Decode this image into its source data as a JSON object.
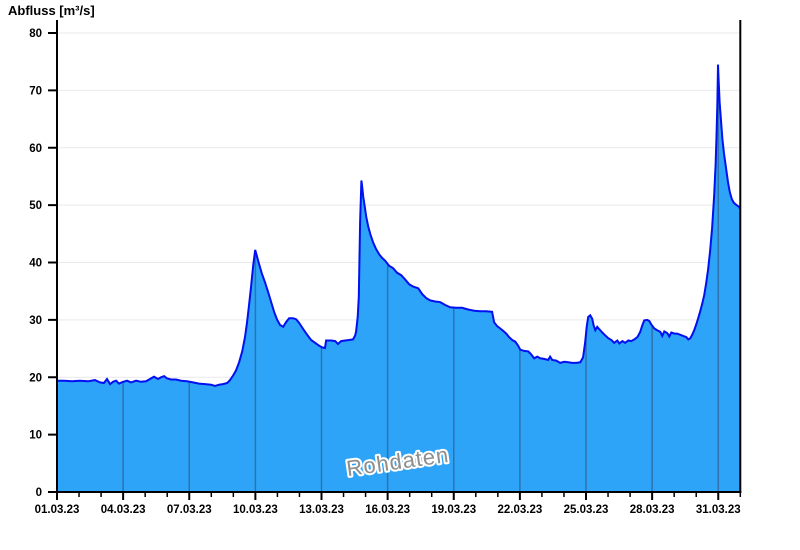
{
  "chart_data": {
    "type": "area",
    "title": "Abfluss [m³/s]",
    "watermark": "Rohdaten",
    "xlabel": "",
    "ylabel": "Abfluss [m³/s]",
    "ylim": [
      0,
      80
    ],
    "y_ticks": [
      0,
      10,
      20,
      30,
      40,
      50,
      60,
      70,
      80
    ],
    "x_range_days": [
      0,
      31
    ],
    "x_major_tick_days": [
      0,
      3,
      6,
      9,
      12,
      15,
      18,
      21,
      24,
      27,
      30
    ],
    "x_tick_labels": [
      "01.03.23",
      "04.03.23",
      "07.03.23",
      "10.03.23",
      "13.03.23",
      "16.03.23",
      "19.03.23",
      "22.03.23",
      "25.03.23",
      "28.03.23",
      "31.03.23"
    ],
    "grid": {
      "horizontal": true,
      "vertical_on_fill_every_days": 3
    },
    "legend": "none",
    "colors": {
      "fill": "#2da4f7",
      "line": "#0010f0",
      "vgrid_on_fill": "#2f72ae",
      "hgrid": "#e9e9ec",
      "axis": "#000000",
      "watermark": "#8e8e8e",
      "watermark_halo": "#ffffff"
    },
    "series": [
      {
        "name": "Rohdaten",
        "unit": "m³/s",
        "points": [
          [
            0.0,
            19.4
          ],
          [
            0.32,
            19.4
          ],
          [
            0.68,
            19.3
          ],
          [
            1.04,
            19.4
          ],
          [
            1.41,
            19.3
          ],
          [
            1.72,
            19.5
          ],
          [
            1.95,
            19.1
          ],
          [
            2.13,
            19.0
          ],
          [
            2.27,
            19.7
          ],
          [
            2.41,
            18.8
          ],
          [
            2.54,
            19.2
          ],
          [
            2.68,
            19.4
          ],
          [
            2.81,
            18.9
          ],
          [
            3.0,
            19.2
          ],
          [
            3.18,
            19.4
          ],
          [
            3.36,
            19.1
          ],
          [
            3.59,
            19.4
          ],
          [
            3.81,
            19.2
          ],
          [
            4.04,
            19.3
          ],
          [
            4.22,
            19.7
          ],
          [
            4.4,
            20.1
          ],
          [
            4.58,
            19.7
          ],
          [
            4.72,
            20.0
          ],
          [
            4.86,
            20.2
          ],
          [
            4.99,
            19.8
          ],
          [
            5.17,
            19.6
          ],
          [
            5.4,
            19.6
          ],
          [
            5.63,
            19.4
          ],
          [
            5.9,
            19.3
          ],
          [
            6.17,
            19.1
          ],
          [
            6.44,
            18.9
          ],
          [
            6.72,
            18.8
          ],
          [
            6.99,
            18.7
          ],
          [
            7.17,
            18.5
          ],
          [
            7.35,
            18.7
          ],
          [
            7.53,
            18.8
          ],
          [
            7.72,
            19.0
          ],
          [
            7.85,
            19.5
          ],
          [
            7.99,
            20.3
          ],
          [
            8.12,
            21.2
          ],
          [
            8.26,
            22.6
          ],
          [
            8.4,
            24.5
          ],
          [
            8.53,
            27.0
          ],
          [
            8.62,
            29.5
          ],
          [
            8.71,
            32.5
          ],
          [
            8.81,
            36.0
          ],
          [
            8.9,
            39.5
          ],
          [
            8.99,
            42.2
          ],
          [
            9.08,
            41.0
          ],
          [
            9.17,
            39.7
          ],
          [
            9.3,
            38.0
          ],
          [
            9.44,
            36.5
          ],
          [
            9.58,
            34.8
          ],
          [
            9.71,
            33.2
          ],
          [
            9.85,
            31.4
          ],
          [
            9.99,
            30.0
          ],
          [
            10.12,
            29.1
          ],
          [
            10.26,
            28.8
          ],
          [
            10.39,
            29.6
          ],
          [
            10.53,
            30.3
          ],
          [
            10.71,
            30.3
          ],
          [
            10.85,
            30.1
          ],
          [
            10.98,
            29.5
          ],
          [
            11.17,
            28.4
          ],
          [
            11.35,
            27.4
          ],
          [
            11.53,
            26.5
          ],
          [
            11.71,
            26.0
          ],
          [
            11.89,
            25.5
          ],
          [
            12.03,
            25.2
          ],
          [
            12.16,
            25.1
          ],
          [
            12.21,
            26.4
          ],
          [
            12.44,
            26.4
          ],
          [
            12.62,
            26.3
          ],
          [
            12.75,
            25.8
          ],
          [
            12.89,
            26.3
          ],
          [
            13.07,
            26.4
          ],
          [
            13.25,
            26.5
          ],
          [
            13.43,
            26.6
          ],
          [
            13.53,
            27.3
          ],
          [
            13.57,
            28.0
          ],
          [
            13.64,
            30.5
          ],
          [
            13.69,
            34.0
          ],
          [
            13.72,
            40.0
          ],
          [
            13.75,
            47.0
          ],
          [
            13.79,
            52.0
          ],
          [
            13.81,
            54.3
          ],
          [
            13.85,
            53.0
          ],
          [
            13.89,
            51.5
          ],
          [
            13.96,
            49.8
          ],
          [
            14.03,
            48.0
          ],
          [
            14.12,
            46.3
          ],
          [
            14.21,
            45.0
          ],
          [
            14.34,
            43.5
          ],
          [
            14.48,
            42.3
          ],
          [
            14.62,
            41.4
          ],
          [
            14.75,
            40.8
          ],
          [
            14.89,
            40.3
          ],
          [
            15.07,
            39.4
          ],
          [
            15.25,
            39.0
          ],
          [
            15.43,
            38.2
          ],
          [
            15.61,
            37.8
          ],
          [
            15.8,
            37.0
          ],
          [
            15.98,
            36.2
          ],
          [
            16.16,
            35.8
          ],
          [
            16.39,
            35.5
          ],
          [
            16.57,
            34.5
          ],
          [
            16.75,
            33.8
          ],
          [
            16.93,
            33.4
          ],
          [
            17.16,
            33.2
          ],
          [
            17.38,
            33.1
          ],
          [
            17.61,
            32.6
          ],
          [
            17.84,
            32.2
          ],
          [
            18.11,
            32.1
          ],
          [
            18.38,
            32.1
          ],
          [
            18.65,
            31.8
          ],
          [
            18.93,
            31.6
          ],
          [
            19.2,
            31.5
          ],
          [
            19.47,
            31.5
          ],
          [
            19.74,
            31.4
          ],
          [
            19.83,
            29.6
          ],
          [
            19.97,
            28.9
          ],
          [
            20.11,
            28.5
          ],
          [
            20.24,
            28.1
          ],
          [
            20.38,
            27.6
          ],
          [
            20.51,
            27.0
          ],
          [
            20.65,
            26.5
          ],
          [
            20.79,
            26.2
          ],
          [
            20.92,
            25.5
          ],
          [
            21.02,
            24.8
          ],
          [
            21.2,
            24.6
          ],
          [
            21.38,
            24.5
          ],
          [
            21.51,
            24.0
          ],
          [
            21.65,
            23.3
          ],
          [
            21.79,
            23.6
          ],
          [
            21.92,
            23.3
          ],
          [
            22.1,
            23.2
          ],
          [
            22.28,
            23.0
          ],
          [
            22.37,
            23.6
          ],
          [
            22.47,
            23.0
          ],
          [
            22.65,
            22.9
          ],
          [
            22.83,
            22.5
          ],
          [
            23.01,
            22.7
          ],
          [
            23.19,
            22.6
          ],
          [
            23.37,
            22.5
          ],
          [
            23.56,
            22.5
          ],
          [
            23.74,
            22.6
          ],
          [
            23.87,
            23.5
          ],
          [
            23.96,
            26.0
          ],
          [
            24.03,
            28.8
          ],
          [
            24.1,
            30.5
          ],
          [
            24.19,
            30.8
          ],
          [
            24.28,
            30.2
          ],
          [
            24.35,
            29.0
          ],
          [
            24.42,
            28.2
          ],
          [
            24.51,
            28.8
          ],
          [
            24.6,
            28.4
          ],
          [
            24.74,
            27.8
          ],
          [
            24.87,
            27.3
          ],
          [
            25.01,
            26.8
          ],
          [
            25.15,
            26.5
          ],
          [
            25.28,
            26.0
          ],
          [
            25.42,
            26.4
          ],
          [
            25.51,
            25.9
          ],
          [
            25.65,
            26.3
          ],
          [
            25.78,
            26.0
          ],
          [
            25.92,
            26.4
          ],
          [
            26.05,
            26.3
          ],
          [
            26.19,
            26.6
          ],
          [
            26.33,
            27.0
          ],
          [
            26.46,
            27.9
          ],
          [
            26.55,
            29.0
          ],
          [
            26.64,
            29.9
          ],
          [
            26.78,
            30.0
          ],
          [
            26.87,
            29.8
          ],
          [
            26.96,
            29.2
          ],
          [
            27.1,
            28.5
          ],
          [
            27.23,
            28.2
          ],
          [
            27.37,
            27.9
          ],
          [
            27.46,
            27.2
          ],
          [
            27.55,
            28.0
          ],
          [
            27.69,
            27.7
          ],
          [
            27.78,
            27.1
          ],
          [
            27.87,
            27.8
          ],
          [
            28.01,
            27.6
          ],
          [
            28.14,
            27.6
          ],
          [
            28.28,
            27.4
          ],
          [
            28.41,
            27.2
          ],
          [
            28.55,
            27.0
          ],
          [
            28.64,
            26.6
          ],
          [
            28.73,
            26.8
          ],
          [
            28.82,
            27.4
          ],
          [
            28.91,
            28.2
          ],
          [
            29.0,
            29.2
          ],
          [
            29.09,
            30.3
          ],
          [
            29.18,
            31.5
          ],
          [
            29.27,
            32.8
          ],
          [
            29.36,
            34.3
          ],
          [
            29.45,
            36.3
          ],
          [
            29.54,
            38.8
          ],
          [
            29.63,
            42.0
          ],
          [
            29.72,
            46.0
          ],
          [
            29.81,
            51.5
          ],
          [
            29.88,
            57.0
          ],
          [
            29.92,
            62.0
          ],
          [
            29.96,
            68.0
          ],
          [
            29.99,
            74.5
          ],
          [
            30.02,
            71.5
          ],
          [
            30.06,
            68.0
          ],
          [
            30.13,
            64.5
          ],
          [
            30.19,
            61.5
          ],
          [
            30.26,
            59.0
          ],
          [
            30.35,
            56.5
          ],
          [
            30.44,
            54.0
          ],
          [
            30.53,
            52.2
          ],
          [
            30.62,
            51.0
          ],
          [
            30.71,
            50.4
          ],
          [
            30.8,
            50.1
          ],
          [
            30.87,
            49.9
          ],
          [
            30.94,
            49.7
          ],
          [
            31.0,
            49.3
          ]
        ]
      }
    ]
  }
}
